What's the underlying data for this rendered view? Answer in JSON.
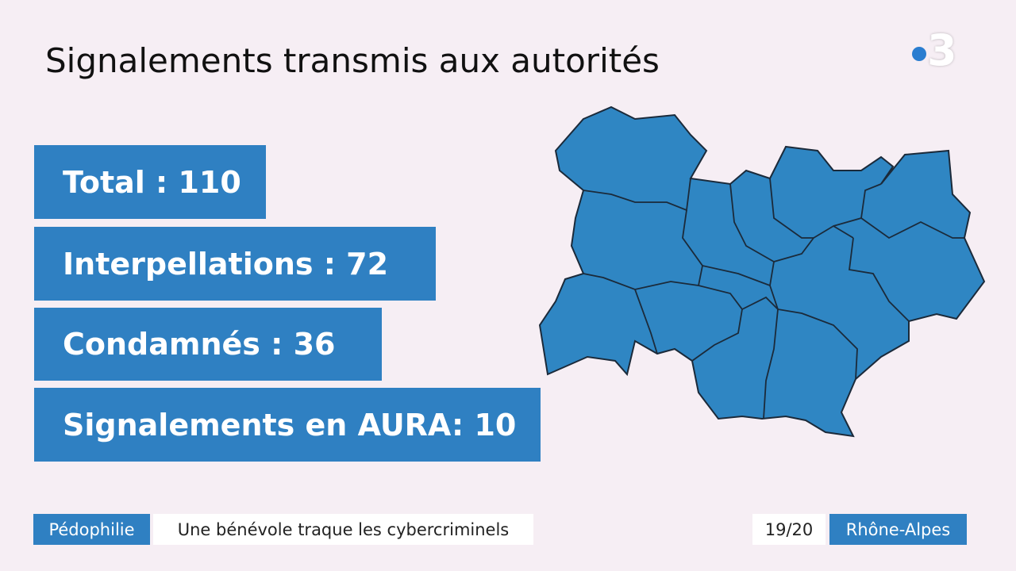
{
  "header": {
    "title": "Signalements transmis aux autorités",
    "logo": "3"
  },
  "stats": [
    "Total : 110",
    "Interpellations : 72",
    "Condamnés : 36",
    "Signalements en AURA: 10"
  ],
  "footer": {
    "topic": "Pédophilie",
    "headline": "Une bénévole traque les cybercriminels",
    "program": "19/20",
    "region": "Rhône-Alpes"
  }
}
